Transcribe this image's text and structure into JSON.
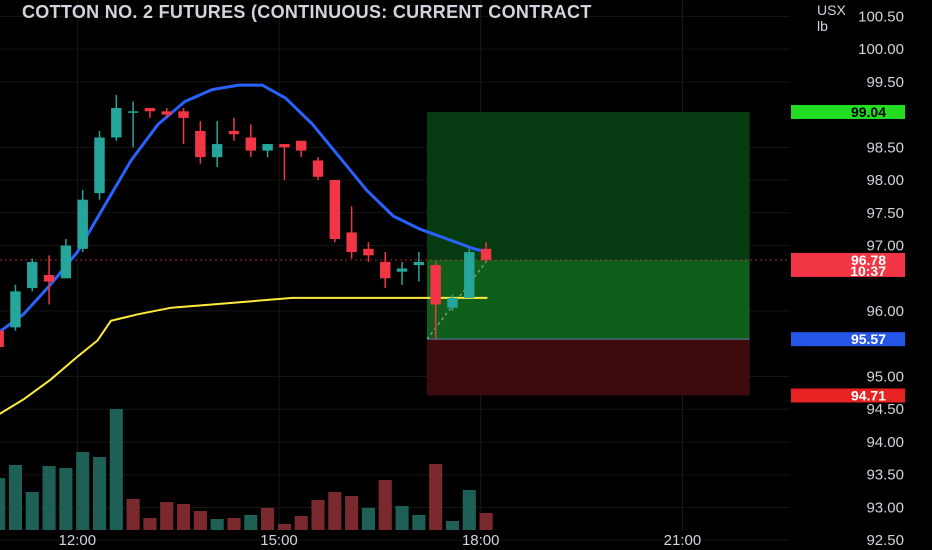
{
  "title": "COTTON NO. 2 FUTURES (CONTINUOUS: CURRENT CONTRACT",
  "currency_unit": "USX",
  "quantity_unit": "lb",
  "colors": {
    "background": "#000000",
    "up_candle": "#26a69a",
    "down_candle": "#f23645",
    "up_volume": "#1e5f56",
    "down_volume": "#7a2a2e",
    "ma_fast": "#2962ff",
    "ma_slow": "#ffeb3b",
    "target_zone": "#0f5f1a",
    "stop_zone": "#3d0a0e",
    "target_badge": "#22dd22",
    "entry_badge": "#2457e8",
    "stop_badge": "#e82222",
    "price_badge": "#f23645"
  },
  "chart_data": {
    "type": "candlestick",
    "title": "COTTON NO. 2 FUTURES (CONTINUOUS: CURRENT CONTRACT",
    "y_unit": "USX/lb",
    "ylim": [
      92.35,
      100.75
    ],
    "xlim_hours": [
      10.85,
      22.6
    ],
    "y_ticks": [
      "100.50",
      "100.00",
      "99.50",
      "98.50",
      "98.00",
      "97.50",
      "97.00",
      "96.00",
      "95.00",
      "94.50",
      "94.00",
      "93.50",
      "93.00",
      "92.50"
    ],
    "x_ticks": [
      {
        "label": "12:00",
        "hour": 12
      },
      {
        "label": "15:00",
        "hour": 15
      },
      {
        "label": "18:00",
        "hour": 18
      },
      {
        "label": "21:00",
        "hour": 21
      }
    ],
    "candles": [
      {
        "t": 10.83,
        "o": 95.7,
        "h": 96.0,
        "l": 94.95,
        "c": 95.45
      },
      {
        "t": 11.08,
        "o": 95.75,
        "h": 96.4,
        "l": 95.7,
        "c": 96.3
      },
      {
        "t": 11.33,
        "o": 96.35,
        "h": 96.8,
        "l": 96.3,
        "c": 96.75
      },
      {
        "t": 11.58,
        "o": 96.55,
        "h": 96.85,
        "l": 96.1,
        "c": 96.45
      },
      {
        "t": 11.83,
        "o": 96.5,
        "h": 97.1,
        "l": 96.5,
        "c": 97.0
      },
      {
        "t": 12.08,
        "o": 96.95,
        "h": 97.85,
        "l": 96.9,
        "c": 97.7
      },
      {
        "t": 12.33,
        "o": 97.8,
        "h": 98.75,
        "l": 97.7,
        "c": 98.65
      },
      {
        "t": 12.58,
        "o": 98.65,
        "h": 99.3,
        "l": 98.6,
        "c": 99.1
      },
      {
        "t": 12.83,
        "o": 99.05,
        "h": 99.2,
        "l": 98.5,
        "c": 99.05
      },
      {
        "t": 13.08,
        "o": 99.1,
        "h": 99.1,
        "l": 98.95,
        "c": 99.05
      },
      {
        "t": 13.33,
        "o": 99.05,
        "h": 99.1,
        "l": 98.95,
        "c": 99.0
      },
      {
        "t": 13.58,
        "o": 99.05,
        "h": 99.1,
        "l": 98.55,
        "c": 98.95
      },
      {
        "t": 13.83,
        "o": 98.75,
        "h": 98.9,
        "l": 98.25,
        "c": 98.35
      },
      {
        "t": 14.08,
        "o": 98.35,
        "h": 98.9,
        "l": 98.2,
        "c": 98.55
      },
      {
        "t": 14.33,
        "o": 98.75,
        "h": 98.95,
        "l": 98.6,
        "c": 98.7
      },
      {
        "t": 14.58,
        "o": 98.65,
        "h": 98.85,
        "l": 98.35,
        "c": 98.45
      },
      {
        "t": 14.83,
        "o": 98.45,
        "h": 98.55,
        "l": 98.35,
        "c": 98.55
      },
      {
        "t": 15.08,
        "o": 98.55,
        "h": 98.55,
        "l": 98.0,
        "c": 98.5
      },
      {
        "t": 15.33,
        "o": 98.6,
        "h": 98.6,
        "l": 98.35,
        "c": 98.45
      },
      {
        "t": 15.58,
        "o": 98.3,
        "h": 98.35,
        "l": 98.0,
        "c": 98.05
      },
      {
        "t": 15.83,
        "o": 98.0,
        "h": 98.0,
        "l": 97.05,
        "c": 97.1
      },
      {
        "t": 16.08,
        "o": 97.2,
        "h": 97.6,
        "l": 96.8,
        "c": 96.9
      },
      {
        "t": 16.33,
        "o": 96.95,
        "h": 97.05,
        "l": 96.75,
        "c": 96.85
      },
      {
        "t": 16.58,
        "o": 96.75,
        "h": 96.9,
        "l": 96.35,
        "c": 96.5
      },
      {
        "t": 16.83,
        "o": 96.6,
        "h": 96.75,
        "l": 96.4,
        "c": 96.65
      },
      {
        "t": 17.08,
        "o": 96.7,
        "h": 96.9,
        "l": 96.45,
        "c": 96.75
      },
      {
        "t": 17.33,
        "o": 96.7,
        "h": 96.75,
        "l": 95.57,
        "c": 96.1
      },
      {
        "t": 17.58,
        "o": 96.05,
        "h": 96.25,
        "l": 96.0,
        "c": 96.2
      },
      {
        "t": 17.83,
        "o": 96.2,
        "h": 96.95,
        "l": 96.2,
        "c": 96.9
      },
      {
        "t": 18.08,
        "o": 96.95,
        "h": 97.05,
        "l": 96.75,
        "c": 96.78
      }
    ],
    "volume": [
      {
        "t": 10.83,
        "v": 52,
        "up": true
      },
      {
        "t": 11.08,
        "v": 65,
        "up": true
      },
      {
        "t": 11.33,
        "v": 38,
        "up": true
      },
      {
        "t": 11.58,
        "v": 64,
        "up": true
      },
      {
        "t": 11.83,
        "v": 62,
        "up": true
      },
      {
        "t": 12.08,
        "v": 78,
        "up": true
      },
      {
        "t": 12.33,
        "v": 73,
        "up": true
      },
      {
        "t": 12.58,
        "v": 121,
        "up": true
      },
      {
        "t": 12.83,
        "v": 31,
        "up": false
      },
      {
        "t": 13.08,
        "v": 12,
        "up": false
      },
      {
        "t": 13.33,
        "v": 28,
        "up": false
      },
      {
        "t": 13.58,
        "v": 26,
        "up": false
      },
      {
        "t": 13.83,
        "v": 19,
        "up": false
      },
      {
        "t": 14.08,
        "v": 11,
        "up": true
      },
      {
        "t": 14.33,
        "v": 12,
        "up": false
      },
      {
        "t": 14.58,
        "v": 15,
        "up": true
      },
      {
        "t": 14.83,
        "v": 22,
        "up": false
      },
      {
        "t": 15.08,
        "v": 6,
        "up": false
      },
      {
        "t": 15.33,
        "v": 14,
        "up": false
      },
      {
        "t": 15.58,
        "v": 30,
        "up": false
      },
      {
        "t": 15.83,
        "v": 38,
        "up": false
      },
      {
        "t": 16.08,
        "v": 34,
        "up": false
      },
      {
        "t": 16.33,
        "v": 22,
        "up": true
      },
      {
        "t": 16.58,
        "v": 50,
        "up": false
      },
      {
        "t": 16.83,
        "v": 24,
        "up": true
      },
      {
        "t": 17.08,
        "v": 15,
        "up": true
      },
      {
        "t": 17.33,
        "v": 66,
        "up": false
      },
      {
        "t": 17.58,
        "v": 9,
        "up": true
      },
      {
        "t": 17.83,
        "v": 40,
        "up": true
      },
      {
        "t": 18.08,
        "v": 17,
        "up": false
      }
    ],
    "ma_fast": [
      {
        "t": 10.8,
        "y": 95.65
      },
      {
        "t": 11.2,
        "y": 95.95
      },
      {
        "t": 11.6,
        "y": 96.4
      },
      {
        "t": 12.0,
        "y": 96.9
      },
      {
        "t": 12.4,
        "y": 97.6
      },
      {
        "t": 12.8,
        "y": 98.3
      },
      {
        "t": 13.2,
        "y": 98.85
      },
      {
        "t": 13.6,
        "y": 99.2
      },
      {
        "t": 14.0,
        "y": 99.38
      },
      {
        "t": 14.4,
        "y": 99.45
      },
      {
        "t": 14.75,
        "y": 99.45
      },
      {
        "t": 15.1,
        "y": 99.25
      },
      {
        "t": 15.5,
        "y": 98.85
      },
      {
        "t": 15.9,
        "y": 98.35
      },
      {
        "t": 16.3,
        "y": 97.85
      },
      {
        "t": 16.7,
        "y": 97.45
      },
      {
        "t": 17.1,
        "y": 97.25
      },
      {
        "t": 17.5,
        "y": 97.1
      },
      {
        "t": 17.9,
        "y": 96.95
      },
      {
        "t": 18.1,
        "y": 96.9
      }
    ],
    "ma_slow": [
      {
        "t": 10.8,
        "y": 94.4
      },
      {
        "t": 11.2,
        "y": 94.65
      },
      {
        "t": 11.6,
        "y": 94.95
      },
      {
        "t": 12.0,
        "y": 95.3
      },
      {
        "t": 12.3,
        "y": 95.55
      },
      {
        "t": 12.5,
        "y": 95.85
      },
      {
        "t": 12.9,
        "y": 95.95
      },
      {
        "t": 13.4,
        "y": 96.05
      },
      {
        "t": 14.0,
        "y": 96.1
      },
      {
        "t": 14.6,
        "y": 96.15
      },
      {
        "t": 15.2,
        "y": 96.2
      },
      {
        "t": 15.8,
        "y": 96.2
      },
      {
        "t": 16.4,
        "y": 96.2
      },
      {
        "t": 17.0,
        "y": 96.2
      },
      {
        "t": 17.6,
        "y": 96.2
      },
      {
        "t": 18.1,
        "y": 96.2
      }
    ],
    "position": {
      "start_hour": 17.2,
      "end_hour": 22.0,
      "target": 99.04,
      "entry": 95.57,
      "stop": 94.71,
      "current": 96.78
    },
    "badges": {
      "target": "99.04",
      "current": "96.78",
      "countdown": "10:37",
      "entry": "95.57",
      "stop": "94.71"
    }
  }
}
